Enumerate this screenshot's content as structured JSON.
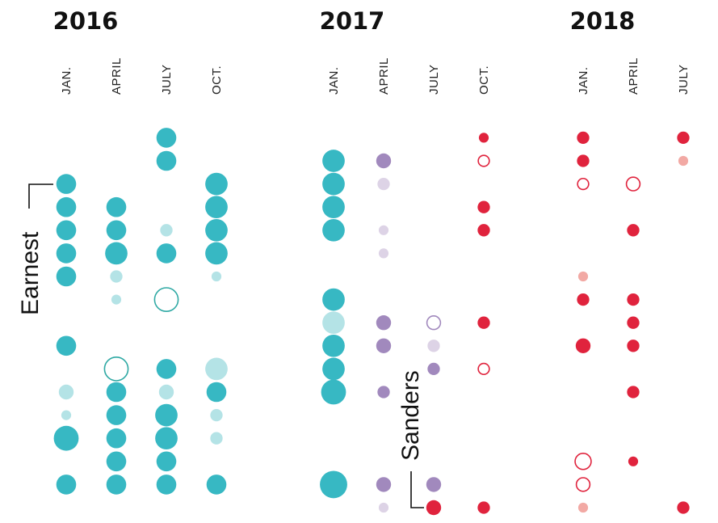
{
  "chart_data": {
    "type": "scatter",
    "years": [
      "2016",
      "2017",
      "2018"
    ],
    "months": [
      {
        "label": "JAN.",
        "year": "2016"
      },
      {
        "label": "APRIL",
        "year": "2016"
      },
      {
        "label": "JULY",
        "year": "2016"
      },
      {
        "label": "OCT.",
        "year": "2016"
      },
      {
        "label": "JAN.",
        "year": "2017"
      },
      {
        "label": "APRIL",
        "year": "2017"
      },
      {
        "label": "JULY",
        "year": "2017"
      },
      {
        "label": "OCT.",
        "year": "2017"
      },
      {
        "label": "JAN.",
        "year": "2018"
      },
      {
        "label": "APRIL",
        "year": "2018"
      },
      {
        "label": "JULY",
        "year": "2018"
      }
    ],
    "colors": {
      "teal": "#37b8c3",
      "teal_light": "#b4e3e6",
      "purple": "#a189bd",
      "purple_light": "#ddd3e6",
      "red": "#e0233d",
      "red_light": "#f2a9a4",
      "outline_teal": "#2fa9a4",
      "outline_red": "#e0233d",
      "outline_purple": "#a189bd"
    },
    "annotations": [
      {
        "label": "Earnest",
        "column": 0,
        "row": 1
      },
      {
        "label": "Sanders",
        "column": 6,
        "row": 18
      }
    ],
    "points": [
      {
        "col": 0,
        "row": 1,
        "size": 3,
        "style": "teal"
      },
      {
        "col": 0,
        "row": 2,
        "size": 3,
        "style": "teal"
      },
      {
        "col": 0,
        "row": 3,
        "size": 3,
        "style": "teal"
      },
      {
        "col": 0,
        "row": 4,
        "size": 3,
        "style": "teal"
      },
      {
        "col": 0,
        "row": 5,
        "size": 3,
        "style": "teal"
      },
      {
        "col": 0,
        "row": 8,
        "size": 3,
        "style": "teal"
      },
      {
        "col": 0,
        "row": 10,
        "size": 2,
        "style": "teal_light"
      },
      {
        "col": 0,
        "row": 11,
        "size": 1,
        "style": "teal_light"
      },
      {
        "col": 0,
        "row": 12,
        "size": 4,
        "style": "teal"
      },
      {
        "col": 0,
        "row": 14,
        "size": 3,
        "style": "teal"
      },
      {
        "col": 1,
        "row": 2,
        "size": 3,
        "style": "teal"
      },
      {
        "col": 1,
        "row": 3,
        "size": 3,
        "style": "teal"
      },
      {
        "col": 1,
        "row": 4,
        "size": 3.5,
        "style": "teal"
      },
      {
        "col": 1,
        "row": 5,
        "size": 1.5,
        "style": "teal_light"
      },
      {
        "col": 1,
        "row": 6,
        "size": 1,
        "style": "teal_light"
      },
      {
        "col": 1,
        "row": 9,
        "size": 4,
        "style": "outline_teal"
      },
      {
        "col": 1,
        "row": 10,
        "size": 3,
        "style": "teal"
      },
      {
        "col": 1,
        "row": 11,
        "size": 3,
        "style": "teal"
      },
      {
        "col": 1,
        "row": 12,
        "size": 3,
        "style": "teal"
      },
      {
        "col": 1,
        "row": 13,
        "size": 3,
        "style": "teal"
      },
      {
        "col": 1,
        "row": 14,
        "size": 3,
        "style": "teal"
      },
      {
        "col": 2,
        "row": -1,
        "size": 3,
        "style": "teal"
      },
      {
        "col": 2,
        "row": 0,
        "size": 3,
        "style": "teal"
      },
      {
        "col": 2,
        "row": 3,
        "size": 1.5,
        "style": "teal_light"
      },
      {
        "col": 2,
        "row": 4,
        "size": 3,
        "style": "teal"
      },
      {
        "col": 2,
        "row": 6,
        "size": 4,
        "style": "outline_teal"
      },
      {
        "col": 2,
        "row": 9,
        "size": 3,
        "style": "teal"
      },
      {
        "col": 2,
        "row": 10,
        "size": 2,
        "style": "teal_light"
      },
      {
        "col": 2,
        "row": 11,
        "size": 3.5,
        "style": "teal"
      },
      {
        "col": 2,
        "row": 12,
        "size": 3.5,
        "style": "teal"
      },
      {
        "col": 2,
        "row": 13,
        "size": 3,
        "style": "teal"
      },
      {
        "col": 2,
        "row": 14,
        "size": 3,
        "style": "teal"
      },
      {
        "col": 3,
        "row": 1,
        "size": 3.5,
        "style": "teal"
      },
      {
        "col": 3,
        "row": 2,
        "size": 3.5,
        "style": "teal"
      },
      {
        "col": 3,
        "row": 3,
        "size": 3.5,
        "style": "teal"
      },
      {
        "col": 3,
        "row": 4,
        "size": 3.5,
        "style": "teal"
      },
      {
        "col": 3,
        "row": 5,
        "size": 1,
        "style": "teal_light"
      },
      {
        "col": 3,
        "row": 9,
        "size": 3.5,
        "style": "teal_light"
      },
      {
        "col": 3,
        "row": 10,
        "size": 3,
        "style": "teal"
      },
      {
        "col": 3,
        "row": 11,
        "size": 1.5,
        "style": "teal_light"
      },
      {
        "col": 3,
        "row": 12,
        "size": 1.5,
        "style": "teal_light"
      },
      {
        "col": 3,
        "row": 14,
        "size": 3,
        "style": "teal"
      },
      {
        "col": 4,
        "row": 0,
        "size": 3.5,
        "style": "teal"
      },
      {
        "col": 4,
        "row": 1,
        "size": 3.5,
        "style": "teal"
      },
      {
        "col": 4,
        "row": 2,
        "size": 3.5,
        "style": "teal"
      },
      {
        "col": 4,
        "row": 3,
        "size": 3.5,
        "style": "teal"
      },
      {
        "col": 4,
        "row": 6,
        "size": 3.5,
        "style": "teal"
      },
      {
        "col": 4,
        "row": 7,
        "size": 3.5,
        "style": "teal_light"
      },
      {
        "col": 4,
        "row": 8,
        "size": 3.5,
        "style": "teal"
      },
      {
        "col": 4,
        "row": 9,
        "size": 3.5,
        "style": "teal"
      },
      {
        "col": 4,
        "row": 10,
        "size": 4,
        "style": "teal"
      },
      {
        "col": 4,
        "row": 14,
        "size": 4.5,
        "style": "teal"
      },
      {
        "col": 5,
        "row": 0,
        "size": 2,
        "style": "purple"
      },
      {
        "col": 5,
        "row": 1,
        "size": 1.5,
        "style": "purple_light"
      },
      {
        "col": 5,
        "row": 3,
        "size": 1,
        "style": "purple_light"
      },
      {
        "col": 5,
        "row": 4,
        "size": 1,
        "style": "purple_light"
      },
      {
        "col": 5,
        "row": 7,
        "size": 2,
        "style": "purple"
      },
      {
        "col": 5,
        "row": 8,
        "size": 2,
        "style": "purple"
      },
      {
        "col": 5,
        "row": 10,
        "size": 1.5,
        "style": "purple"
      },
      {
        "col": 5,
        "row": 14,
        "size": 2,
        "style": "purple"
      },
      {
        "col": 5,
        "row": 15,
        "size": 1,
        "style": "purple_light"
      },
      {
        "col": 6,
        "row": 7,
        "size": 2,
        "style": "outline_purple"
      },
      {
        "col": 6,
        "row": 8,
        "size": 1.5,
        "style": "purple_light"
      },
      {
        "col": 6,
        "row": 9,
        "size": 1.5,
        "style": "purple"
      },
      {
        "col": 6,
        "row": 14,
        "size": 2,
        "style": "purple"
      },
      {
        "col": 6,
        "row": 15,
        "size": 2,
        "style": "red"
      },
      {
        "col": 7,
        "row": -1,
        "size": 1,
        "style": "red"
      },
      {
        "col": 7,
        "row": 0,
        "size": 1.5,
        "style": "outline_red"
      },
      {
        "col": 7,
        "row": 2,
        "size": 1.5,
        "style": "red"
      },
      {
        "col": 7,
        "row": 3,
        "size": 1.5,
        "style": "red"
      },
      {
        "col": 7,
        "row": 7,
        "size": 1.5,
        "style": "red"
      },
      {
        "col": 7,
        "row": 9,
        "size": 1.5,
        "style": "outline_red"
      },
      {
        "col": 7,
        "row": 15,
        "size": 1.5,
        "style": "red"
      },
      {
        "col": 8,
        "row": -1,
        "size": 1.5,
        "style": "red"
      },
      {
        "col": 8,
        "row": 0,
        "size": 1.5,
        "style": "red"
      },
      {
        "col": 8,
        "row": 1,
        "size": 1.5,
        "style": "outline_red"
      },
      {
        "col": 8,
        "row": 5,
        "size": 1,
        "style": "red_light"
      },
      {
        "col": 8,
        "row": 6,
        "size": 1.5,
        "style": "red"
      },
      {
        "col": 8,
        "row": 8,
        "size": 2,
        "style": "red"
      },
      {
        "col": 8,
        "row": 13,
        "size": 2.5,
        "style": "outline_red"
      },
      {
        "col": 8,
        "row": 14,
        "size": 2,
        "style": "outline_red"
      },
      {
        "col": 8,
        "row": 15,
        "size": 1,
        "style": "red_light"
      },
      {
        "col": 9,
        "row": 1,
        "size": 2,
        "style": "outline_red"
      },
      {
        "col": 9,
        "row": 3,
        "size": 1.5,
        "style": "red"
      },
      {
        "col": 9,
        "row": 6,
        "size": 1.5,
        "style": "red"
      },
      {
        "col": 9,
        "row": 7,
        "size": 1.5,
        "style": "red"
      },
      {
        "col": 9,
        "row": 8,
        "size": 1.5,
        "style": "red"
      },
      {
        "col": 9,
        "row": 10,
        "size": 1.5,
        "style": "red"
      },
      {
        "col": 9,
        "row": 13,
        "size": 1,
        "style": "red"
      },
      {
        "col": 10,
        "row": -1,
        "size": 1.5,
        "style": "red"
      },
      {
        "col": 10,
        "row": 0,
        "size": 1,
        "style": "red_light"
      },
      {
        "col": 10,
        "row": 15,
        "size": 1.5,
        "style": "red"
      }
    ]
  }
}
